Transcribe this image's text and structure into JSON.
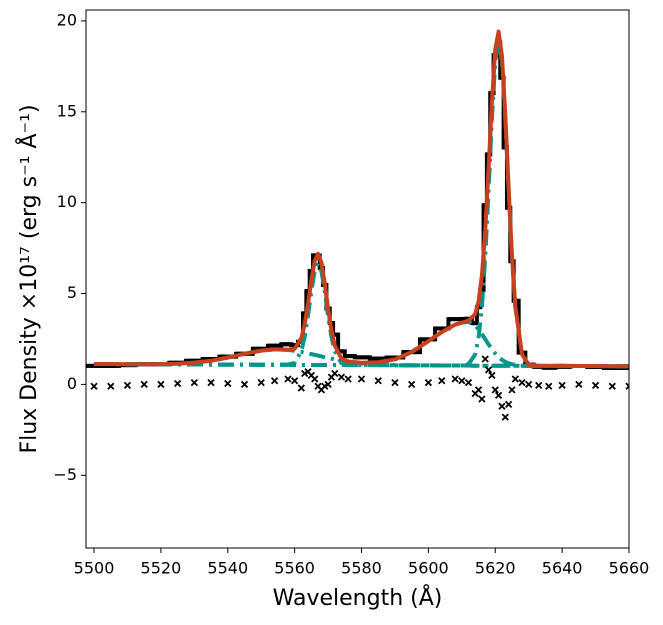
{
  "chart_data": {
    "type": "line",
    "xlabel": "Wavelength (Å)",
    "ylabel": "Flux Density ×10¹⁷ (erg s⁻¹ Å⁻¹)",
    "xlim": [
      5497.6,
      5660
    ],
    "ylim": [
      -9.0,
      20.6
    ],
    "xticks": [
      5500,
      5520,
      5540,
      5560,
      5580,
      5600,
      5620,
      5640,
      5660
    ],
    "yticks": [
      {
        "value": -5,
        "label": "−5"
      },
      0,
      5,
      10,
      15,
      20
    ],
    "x": [
      5500,
      5505,
      5510,
      5515,
      5520,
      5525,
      5530,
      5535,
      5540,
      5545,
      5550,
      5554,
      5558,
      5560,
      5562,
      5563,
      5564,
      5565,
      5566,
      5567,
      5568,
      5569,
      5570,
      5571,
      5572,
      5574,
      5576,
      5580,
      5585,
      5590,
      5595,
      5600,
      5604,
      5608,
      5610,
      5612,
      5614,
      5615,
      5616,
      5617,
      5618,
      5619,
      5620,
      5621,
      5622,
      5623,
      5624,
      5625,
      5626,
      5628,
      5630,
      5633,
      5636,
      5640,
      5645,
      5650,
      5655,
      5660
    ],
    "series": [
      {
        "style": "step",
        "color": "#000000",
        "values": [
          1.02,
          1.02,
          1.06,
          1.11,
          1.11,
          1.19,
          1.3,
          1.4,
          1.53,
          1.69,
          1.96,
          2.13,
          2.21,
          2.16,
          2.35,
          3.91,
          5.13,
          6.24,
          7.1,
          7.09,
          6.41,
          5.47,
          4.18,
          3.38,
          2.74,
          1.82,
          1.56,
          1.49,
          1.42,
          1.48,
          1.78,
          2.48,
          3.08,
          3.59,
          3.6,
          3.61,
          3.37,
          4.25,
          5.19,
          9.86,
          12.66,
          16.03,
          18.12,
          18.81,
          16.87,
          13.04,
          9.72,
          6.78,
          4.6,
          1.75,
          1.09,
          0.97,
          0.92,
          0.97,
          1.01,
          0.96,
          0.9,
          0.9
        ]
      },
      {
        "style": "dashdot",
        "color": "#00968a",
        "values": [
          1.12,
          1.12,
          1.11,
          1.11,
          1.11,
          1.14,
          1.2,
          1.3,
          1.48,
          1.69,
          1.86,
          1.93,
          1.9,
          1.85,
          1.79,
          1.75,
          1.71,
          1.67,
          1.63,
          1.59,
          1.54,
          1.5,
          1.46,
          1.42,
          1.38,
          1.3,
          1.24,
          1.16,
          1.1,
          1.06,
          1.05,
          1.05,
          1.04,
          1.04,
          1.04,
          1.04,
          1.03,
          1.03,
          1.03,
          1.03,
          1.03,
          1.03,
          1.03,
          1.03,
          1.03,
          1.03,
          1.03,
          1.03,
          1.03,
          1.02,
          1.02,
          1.02,
          1.02,
          1.02,
          1.01,
          1.01,
          1.0,
          1.0
        ]
      },
      {
        "style": "dashdot",
        "color": "#00968a",
        "values": [
          1.12,
          1.12,
          1.11,
          1.11,
          1.1,
          1.1,
          1.1,
          1.09,
          1.09,
          1.09,
          1.08,
          1.08,
          1.09,
          1.18,
          1.83,
          2.63,
          3.79,
          5.14,
          6.24,
          6.67,
          6.24,
          5.14,
          3.79,
          2.63,
          1.83,
          1.17,
          1.07,
          1.06,
          1.06,
          1.05,
          1.05,
          1.05,
          1.04,
          1.04,
          1.04,
          1.04,
          1.03,
          1.03,
          1.03,
          1.03,
          1.03,
          1.03,
          1.03,
          1.03,
          1.03,
          1.03,
          1.03,
          1.03,
          1.03,
          1.02,
          1.02,
          1.02,
          1.02,
          1.02,
          1.01,
          1.01,
          1.0,
          1.0
        ]
      },
      {
        "style": "dashdot",
        "color": "#00968a",
        "values": [
          1.12,
          1.12,
          1.11,
          1.11,
          1.1,
          1.1,
          1.1,
          1.09,
          1.09,
          1.09,
          1.08,
          1.08,
          1.08,
          1.07,
          1.07,
          1.07,
          1.07,
          1.07,
          1.07,
          1.07,
          1.07,
          1.07,
          1.07,
          1.07,
          1.07,
          1.07,
          1.07,
          1.09,
          1.18,
          1.37,
          1.78,
          2.38,
          2.88,
          3.29,
          3.4,
          3.44,
          3.25,
          3.03,
          2.77,
          2.49,
          2.2,
          1.93,
          1.7,
          1.51,
          1.35,
          1.24,
          1.16,
          1.11,
          1.08,
          1.03,
          1.02,
          1.02,
          1.02,
          1.02,
          1.01,
          1.01,
          1.0,
          1.0
        ]
      },
      {
        "style": "dashdot",
        "color": "#00968a",
        "values": [
          1.12,
          1.12,
          1.11,
          1.11,
          1.1,
          1.1,
          1.1,
          1.09,
          1.09,
          1.09,
          1.08,
          1.08,
          1.08,
          1.07,
          1.07,
          1.07,
          1.07,
          1.07,
          1.07,
          1.07,
          1.07,
          1.07,
          1.07,
          1.07,
          1.07,
          1.06,
          1.06,
          1.06,
          1.06,
          1.05,
          1.05,
          1.05,
          1.04,
          1.04,
          1.04,
          1.11,
          1.65,
          2.55,
          4.25,
          7.0,
          10.69,
          14.63,
          17.75,
          18.93,
          17.75,
          14.63,
          10.69,
          7.0,
          4.25,
          1.64,
          1.09,
          1.02,
          1.02,
          1.02,
          1.01,
          1.01,
          1.0,
          1.0
        ]
      },
      {
        "style": "line",
        "color": "#c8401e",
        "values": [
          1.12,
          1.12,
          1.11,
          1.11,
          1.11,
          1.14,
          1.2,
          1.3,
          1.48,
          1.69,
          1.86,
          1.93,
          1.91,
          1.96,
          2.55,
          3.31,
          4.43,
          5.74,
          6.8,
          7.19,
          6.71,
          5.57,
          4.18,
          2.98,
          2.14,
          1.42,
          1.26,
          1.19,
          1.22,
          1.38,
          1.78,
          2.38,
          2.88,
          3.29,
          3.4,
          3.51,
          3.87,
          4.55,
          5.99,
          8.46,
          11.86,
          15.53,
          18.42,
          19.41,
          18.07,
          14.84,
          10.82,
          7.08,
          4.3,
          1.65,
          1.09,
          1.02,
          1.02,
          1.02,
          1.01,
          1.01,
          1.0,
          1.0
        ]
      },
      {
        "style": "markers",
        "color": "#000000",
        "values": [
          -0.1,
          -0.1,
          -0.05,
          0.0,
          0.0,
          0.05,
          0.1,
          0.1,
          0.05,
          0.0,
          0.1,
          0.2,
          0.3,
          0.2,
          -0.2,
          0.6,
          0.7,
          0.5,
          0.3,
          -0.1,
          -0.3,
          -0.1,
          0.0,
          0.4,
          0.6,
          0.4,
          0.3,
          0.3,
          0.2,
          0.1,
          0.0,
          0.1,
          0.2,
          0.3,
          0.2,
          0.1,
          -0.5,
          -0.3,
          -0.8,
          1.4,
          0.8,
          0.5,
          -0.3,
          -0.6,
          -1.2,
          -1.8,
          -1.1,
          -0.3,
          0.3,
          0.1,
          0.0,
          -0.05,
          -0.1,
          -0.05,
          0.0,
          -0.05,
          -0.1,
          -0.1
        ]
      }
    ]
  }
}
